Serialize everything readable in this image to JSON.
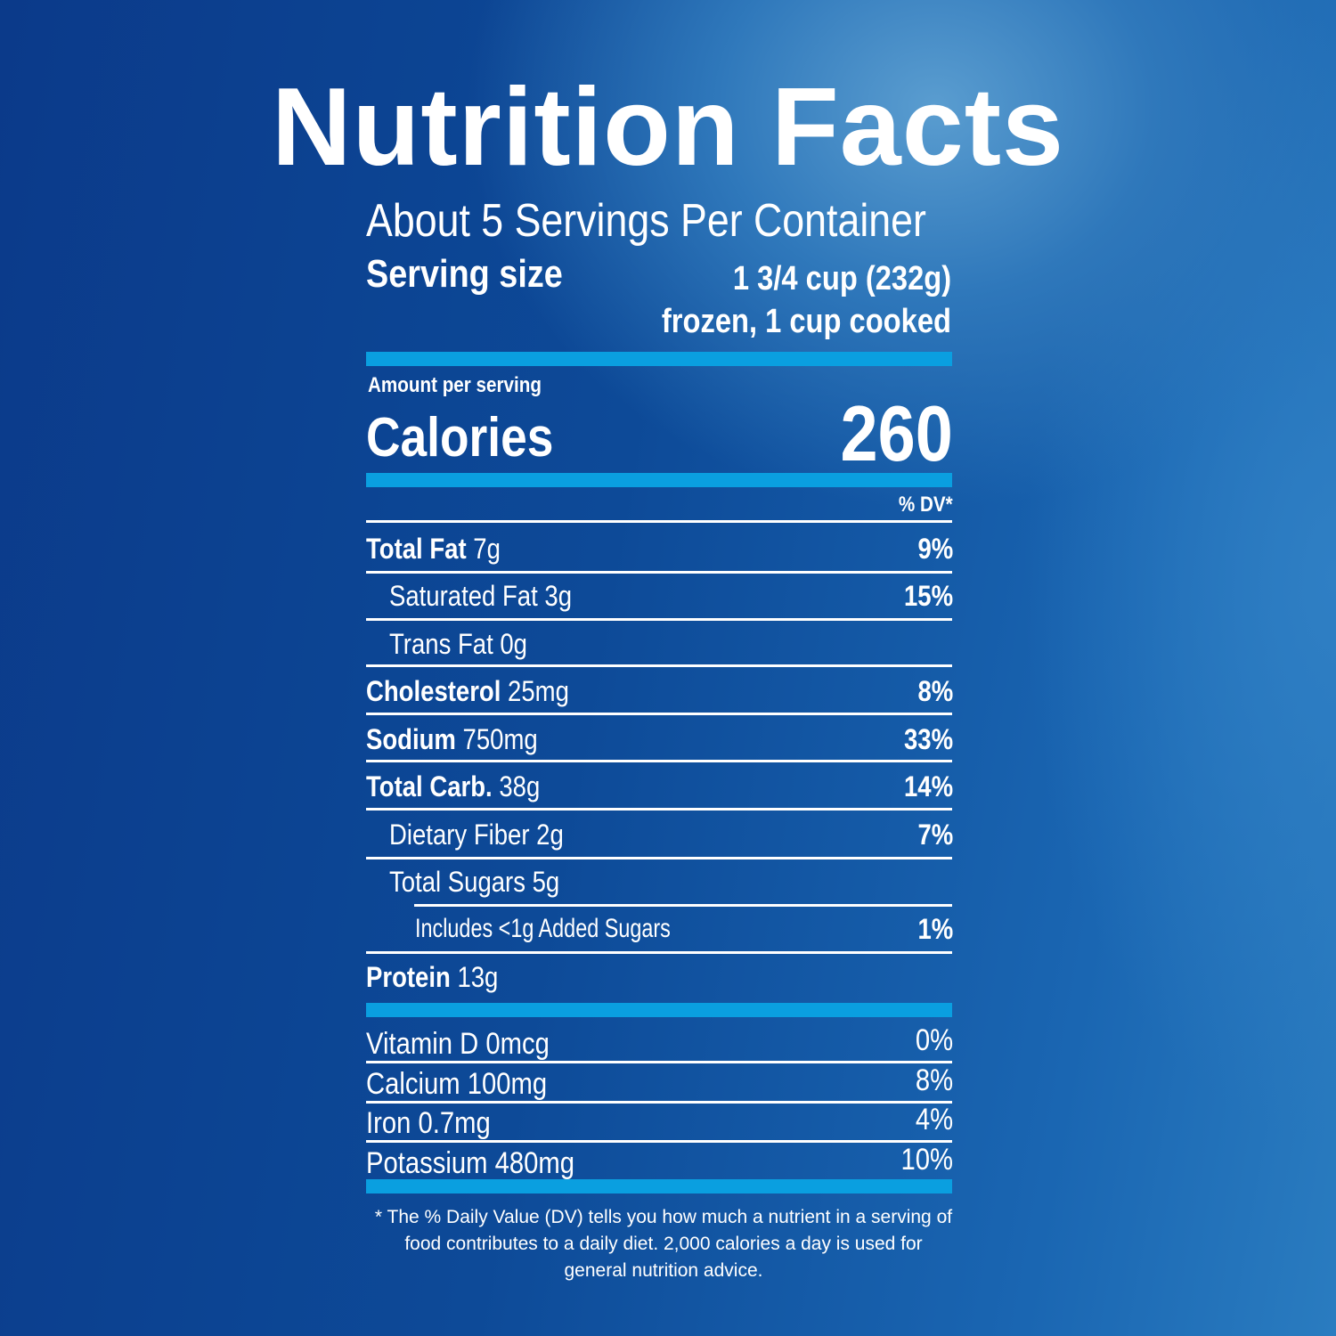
{
  "title": "Nutrition Facts",
  "servings": "About 5 Servings Per Container",
  "serving_size_label": "Serving size",
  "serving_size_value_1": "1 3/4 cup (232g)",
  "serving_size_value_2": "frozen, 1 cup cooked",
  "amount_per_serving": "Amount per serving",
  "calories_label": "Calories",
  "calories_value": "260",
  "dv_header": "% DV*",
  "nutrients": [
    {
      "name": "Total Fat",
      "amount": "7g",
      "dv": "9%"
    },
    {
      "name": "Saturated Fat 3g",
      "amount": "",
      "dv": "15%"
    },
    {
      "name": "Trans Fat 0g",
      "amount": "",
      "dv": ""
    },
    {
      "name": "Cholesterol",
      "amount": "25mg",
      "dv": "8%"
    },
    {
      "name": "Sodium",
      "amount": "750mg",
      "dv": "33%"
    },
    {
      "name": "Total Carb.",
      "amount": "38g",
      "dv": "14%"
    },
    {
      "name": "Dietary Fiber 2g",
      "amount": "",
      "dv": "7%"
    },
    {
      "name": "Total Sugars 5g",
      "amount": "",
      "dv": ""
    },
    {
      "name": "Includes <1g Added Sugars",
      "amount": "",
      "dv": "1%"
    },
    {
      "name": "Protein",
      "amount": "13g",
      "dv": ""
    }
  ],
  "micros": [
    {
      "name": "Vitamin D 0mcg",
      "dv": "0%"
    },
    {
      "name": "Calcium 100mg",
      "dv": "8%"
    },
    {
      "name": "Iron 0.7mg",
      "dv": "4%"
    },
    {
      "name": "Potassium 480mg",
      "dv": "10%"
    }
  ],
  "footnote": "* The % Daily Value (DV) tells you how much a nutrient in a serving of food contributes to a daily diet. 2,000 calories a day is used for general nutrition advice.",
  "colors": {
    "accent_bar": "#0a9fe0",
    "background": "#0d4a98"
  }
}
